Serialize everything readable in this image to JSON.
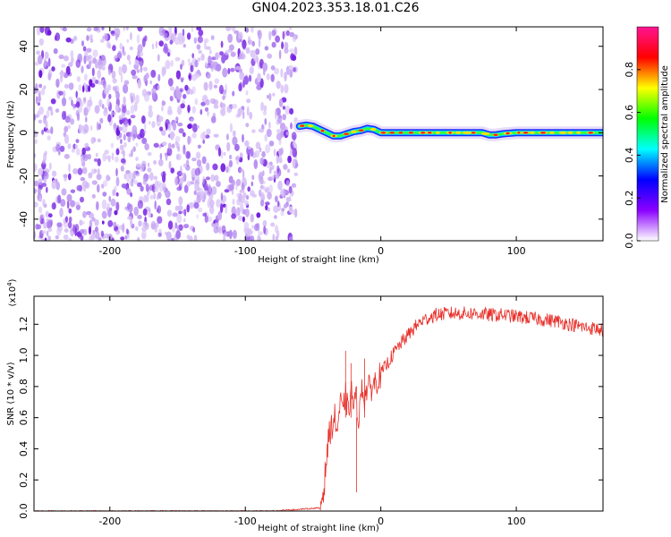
{
  "title": "GN04.2023.353.18.01.C26",
  "chart_data": [
    {
      "type": "heatmap",
      "xlabel": "Height of straight line (km)",
      "ylabel": "Frequency (Hz)",
      "xlim": [
        -256,
        164
      ],
      "ylim": [
        -50,
        49
      ],
      "xticks": [
        -200,
        -100,
        0,
        100
      ],
      "yticks": [
        -40,
        -20,
        0,
        20,
        40
      ],
      "noise_region_x": [
        -256,
        -62
      ],
      "signal_region_x": [
        -62,
        164
      ],
      "signal_centerline": {
        "x": [
          -60,
          -55,
          -50,
          -45,
          -40,
          -35,
          -30,
          -25,
          -20,
          -15,
          -10,
          -5,
          0,
          20,
          40,
          60,
          75,
          80,
          85,
          90,
          100,
          120,
          140,
          164
        ],
        "y": [
          3,
          3.5,
          3,
          1.5,
          0,
          -1.5,
          -1.5,
          -0.5,
          0.5,
          1,
          2,
          1.5,
          0,
          0,
          0,
          0,
          0,
          -1,
          -1,
          -0.5,
          0,
          0,
          0,
          0
        ]
      },
      "colorbar": {
        "label": "Normalized spectral amplitude",
        "range": [
          0.0,
          1.0
        ],
        "ticks": [
          "0.0",
          "0.2",
          "0.4",
          "0.6",
          "0.8"
        ],
        "colors": [
          "#ffffff",
          "#8b00ff",
          "#0000ff",
          "#00ffff",
          "#00ff00",
          "#ffff00",
          "#ff0000",
          "#ff1493"
        ]
      }
    },
    {
      "type": "line",
      "xlabel": "Height of straight line (km)",
      "ylabel": "SNR (10 * v/v)",
      "y_multiplier": "(x10",
      "y_multiplier_exp": "4",
      "y_multiplier_close": ")",
      "xlim": [
        -256,
        164
      ],
      "ylim": [
        0.0,
        1.38
      ],
      "xticks": [
        -200,
        -100,
        0,
        100
      ],
      "yticks": [
        "0.0",
        "0.2",
        "0.4",
        "0.6",
        "0.8",
        "1.0",
        "1.2"
      ],
      "series": [
        {
          "color": "#e8302a",
          "x": [
            -256,
            -80,
            -45,
            -42,
            -40,
            -38,
            -36,
            -34,
            -32,
            -30,
            -28,
            -26,
            -24,
            -22,
            -20,
            -18,
            -16,
            -14,
            -12,
            -10,
            -8,
            -5,
            -2,
            0,
            5,
            10,
            15,
            20,
            25,
            30,
            35,
            40,
            50,
            60,
            70,
            80,
            90,
            100,
            110,
            120,
            130,
            140,
            150,
            160,
            164
          ],
          "y": [
            0.0,
            0.0,
            0.02,
            0.15,
            0.35,
            0.5,
            0.55,
            0.6,
            0.52,
            0.7,
            0.62,
            0.75,
            0.62,
            0.78,
            0.68,
            0.72,
            0.58,
            0.82,
            0.72,
            0.8,
            0.78,
            0.82,
            0.85,
            0.88,
            0.95,
            1.02,
            1.08,
            1.13,
            1.18,
            1.22,
            1.24,
            1.26,
            1.27,
            1.27,
            1.27,
            1.26,
            1.26,
            1.25,
            1.24,
            1.23,
            1.22,
            1.2,
            1.18,
            1.17,
            1.16
          ]
        }
      ]
    }
  ]
}
